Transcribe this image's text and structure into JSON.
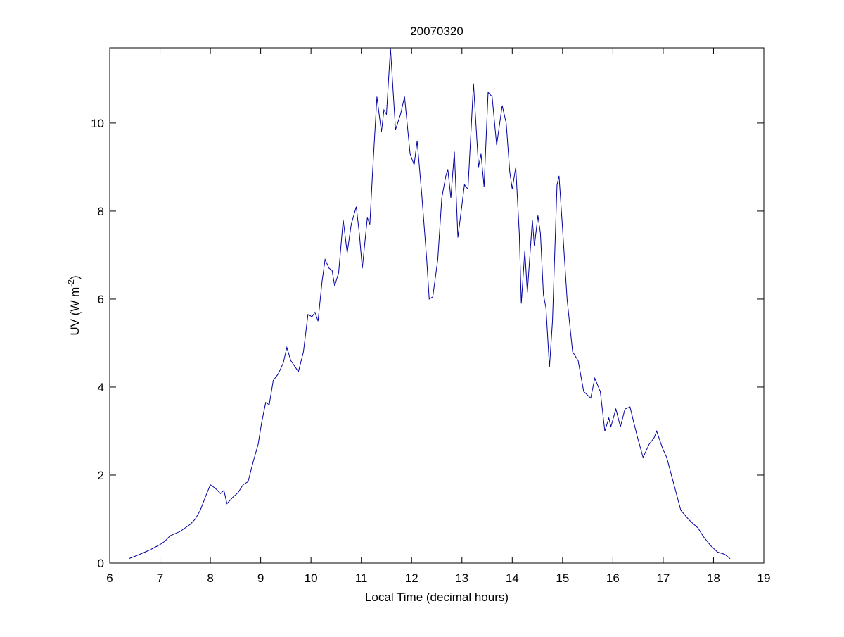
{
  "chart_data": {
    "type": "line",
    "title": "20070320",
    "xlabel": "Local Time (decimal hours)",
    "ylabel": {
      "text": "UV (W m",
      "superscript": "-2",
      "suffix": ")"
    },
    "xlim": [
      6,
      19
    ],
    "ylim": [
      0,
      11.71
    ],
    "xticks": [
      6,
      7,
      8,
      9,
      10,
      11,
      12,
      13,
      14,
      15,
      16,
      17,
      18,
      19
    ],
    "yticks": [
      0,
      2,
      4,
      6,
      8,
      10
    ],
    "grid": false,
    "series": [
      {
        "color": "#0000a0",
        "x": [
          6.38,
          6.6,
          6.8,
          7.0,
          7.1,
          7.2,
          7.4,
          7.6,
          7.7,
          7.8,
          7.9,
          8.0,
          8.1,
          8.2,
          8.27,
          8.33,
          8.45,
          8.55,
          8.65,
          8.75,
          8.85,
          8.95,
          9.02,
          9.1,
          9.17,
          9.25,
          9.35,
          9.45,
          9.52,
          9.6,
          9.75,
          9.85,
          9.94,
          10.02,
          10.08,
          10.14,
          10.22,
          10.28,
          10.36,
          10.42,
          10.47,
          10.55,
          10.64,
          10.72,
          10.8,
          10.9,
          10.96,
          11.02,
          11.12,
          11.17,
          11.22,
          11.31,
          11.4,
          11.45,
          11.5,
          11.58,
          11.68,
          11.78,
          11.86,
          11.97,
          12.05,
          12.11,
          12.2,
          12.3,
          12.35,
          12.42,
          12.52,
          12.6,
          12.68,
          12.72,
          12.78,
          12.85,
          12.92,
          13.05,
          13.12,
          13.23,
          13.33,
          13.38,
          13.44,
          13.52,
          13.6,
          13.69,
          13.8,
          13.88,
          13.95,
          14.0,
          14.07,
          14.14,
          14.18,
          14.25,
          14.3,
          14.4,
          14.44,
          14.51,
          14.56,
          14.62,
          14.67,
          14.74,
          14.8,
          14.89,
          14.93,
          15.0,
          15.09,
          15.2,
          15.31,
          15.42,
          15.56,
          15.64,
          15.75,
          15.84,
          15.92,
          15.96,
          16.06,
          16.15,
          16.24,
          16.34,
          16.48,
          16.6,
          16.72,
          16.82,
          16.87,
          16.99,
          17.07,
          17.21,
          17.35,
          17.5,
          17.59,
          17.69,
          17.8,
          17.94,
          18.08,
          18.22,
          18.33
        ],
        "values": [
          0.1,
          0.2,
          0.3,
          0.42,
          0.5,
          0.62,
          0.72,
          0.88,
          1.0,
          1.2,
          1.5,
          1.78,
          1.7,
          1.58,
          1.65,
          1.35,
          1.5,
          1.6,
          1.78,
          1.85,
          2.3,
          2.7,
          3.2,
          3.65,
          3.6,
          4.15,
          4.3,
          4.55,
          4.9,
          4.6,
          4.35,
          4.8,
          5.65,
          5.6,
          5.7,
          5.5,
          6.4,
          6.9,
          6.7,
          6.65,
          6.3,
          6.6,
          7.8,
          7.05,
          7.7,
          8.1,
          7.5,
          6.7,
          7.85,
          7.7,
          8.8,
          10.6,
          9.8,
          10.3,
          10.2,
          11.7,
          9.85,
          10.2,
          10.6,
          9.3,
          9.05,
          9.6,
          8.4,
          6.9,
          6.0,
          6.05,
          6.9,
          8.3,
          8.8,
          8.95,
          8.3,
          9.35,
          7.4,
          8.6,
          8.5,
          10.9,
          9.0,
          9.3,
          8.55,
          10.7,
          10.6,
          9.5,
          10.4,
          10.0,
          8.9,
          8.5,
          9.0,
          7.5,
          5.9,
          7.1,
          6.15,
          7.8,
          7.2,
          7.9,
          7.5,
          6.1,
          5.8,
          4.45,
          5.5,
          8.6,
          8.8,
          7.6,
          6.0,
          4.8,
          4.6,
          3.9,
          3.75,
          4.2,
          3.9,
          3.0,
          3.3,
          3.1,
          3.5,
          3.1,
          3.5,
          3.55,
          2.9,
          2.4,
          2.7,
          2.85,
          3.0,
          2.6,
          2.4,
          1.8,
          1.2,
          1.0,
          0.9,
          0.8,
          0.6,
          0.4,
          0.25,
          0.2,
          0.1
        ]
      }
    ]
  }
}
